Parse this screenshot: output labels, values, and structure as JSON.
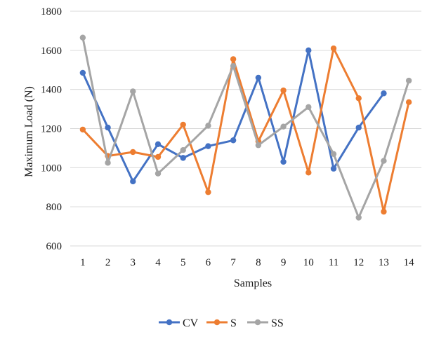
{
  "chart_data": {
    "type": "line",
    "title": "",
    "xlabel": "Samples",
    "ylabel": "Maximum Load (N)",
    "ylim": [
      600,
      1800
    ],
    "yticks": [
      600,
      800,
      1000,
      1200,
      1400,
      1600,
      1800
    ],
    "categories": [
      "1",
      "2",
      "3",
      "4",
      "5",
      "6",
      "7",
      "8",
      "9",
      "10",
      "11",
      "12",
      "13",
      "14"
    ],
    "grid": true,
    "legend_position": "bottom",
    "series": [
      {
        "name": "CV",
        "color": "#4472C4",
        "values": [
          1485,
          1205,
          930,
          1120,
          1050,
          1110,
          1140,
          1460,
          1030,
          1600,
          995,
          1205,
          1380,
          null
        ]
      },
      {
        "name": "S",
        "color": "#ED7D31",
        "values": [
          1195,
          1060,
          1080,
          1055,
          1220,
          875,
          1555,
          1135,
          1395,
          975,
          1610,
          1355,
          775,
          1335
        ]
      },
      {
        "name": "SS",
        "color": "#A5A5A5",
        "values": [
          1665,
          1025,
          1390,
          970,
          1090,
          1215,
          1520,
          1115,
          1210,
          1310,
          1070,
          745,
          1035,
          1445
        ]
      }
    ]
  }
}
